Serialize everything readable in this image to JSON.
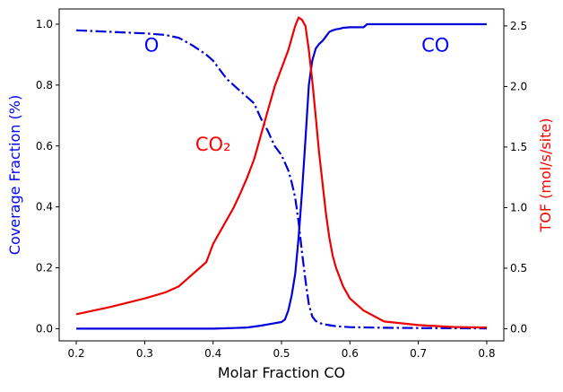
{
  "chart_data": {
    "type": "line",
    "title": "",
    "xlabel": "Molar Fraction CO",
    "ylabel_left": "Coverage Fraction (%)",
    "ylabel_right": "TOF (mol/s/site)",
    "xlim": [
      0.175,
      0.825
    ],
    "ylim_left": [
      -0.04,
      1.05
    ],
    "ylim_right": [
      -0.1,
      2.64
    ],
    "x_ticks": [
      0.2,
      0.3,
      0.4,
      0.5,
      0.6,
      0.7,
      0.8
    ],
    "x_tick_labels": [
      "0.2",
      "0.3",
      "0.4",
      "0.5",
      "0.6",
      "0.7",
      "0.8"
    ],
    "y_left_ticks": [
      0.0,
      0.2,
      0.4,
      0.6,
      0.8,
      1.0
    ],
    "y_left_tick_labels": [
      "0.0",
      "0.2",
      "0.4",
      "0.6",
      "0.8",
      "1.0"
    ],
    "y_right_ticks": [
      0.0,
      0.5,
      1.0,
      1.5,
      2.0,
      2.5
    ],
    "y_right_tick_labels": [
      "0.0",
      "0.5",
      "1.0",
      "1.5",
      "2.0",
      "2.5"
    ],
    "colors": {
      "left_axis": "#0000ff",
      "right_axis": "#ff0000",
      "co": "#0000dd",
      "o": "#0000dd",
      "co2": "#ee0000"
    },
    "annotations": [
      {
        "text": "O",
        "x": 0.31,
        "y": 0.91,
        "axis": "left",
        "color": "#0000ff"
      },
      {
        "text": "CO",
        "x": 0.725,
        "y": 0.91,
        "axis": "left",
        "color": "#0000ff"
      },
      {
        "text": "CO₂",
        "x": 0.4,
        "y": 0.585,
        "axis": "left",
        "color": "#ff0000"
      }
    ],
    "series": [
      {
        "name": "CO",
        "axis": "left",
        "style": "solid",
        "x": [
          0.2,
          0.3,
          0.4,
          0.43,
          0.45,
          0.47,
          0.49,
          0.5,
          0.505,
          0.51,
          0.515,
          0.52,
          0.525,
          0.53,
          0.535,
          0.54,
          0.545,
          0.55,
          0.555,
          0.56,
          0.565,
          0.57,
          0.575,
          0.58,
          0.585,
          0.59,
          0.6,
          0.61,
          0.62,
          0.625,
          0.65,
          0.7,
          0.75,
          0.8
        ],
        "y": [
          0.0,
          0.0,
          0.0,
          0.002,
          0.004,
          0.01,
          0.018,
          0.022,
          0.03,
          0.06,
          0.11,
          0.18,
          0.3,
          0.45,
          0.62,
          0.8,
          0.88,
          0.92,
          0.935,
          0.945,
          0.96,
          0.975,
          0.98,
          0.983,
          0.985,
          0.988,
          0.99,
          0.99,
          0.99,
          1.0,
          1.0,
          1.0,
          1.0,
          1.0
        ]
      },
      {
        "name": "O",
        "axis": "left",
        "style": "dashdot",
        "x": [
          0.2,
          0.25,
          0.3,
          0.33,
          0.35,
          0.37,
          0.39,
          0.4,
          0.42,
          0.44,
          0.46,
          0.47,
          0.48,
          0.49,
          0.5,
          0.51,
          0.515,
          0.52,
          0.525,
          0.53,
          0.535,
          0.54,
          0.545,
          0.55,
          0.56,
          0.58,
          0.6,
          0.65,
          0.7,
          0.8
        ],
        "y": [
          0.98,
          0.975,
          0.97,
          0.965,
          0.955,
          0.93,
          0.9,
          0.88,
          0.82,
          0.78,
          0.74,
          0.69,
          0.65,
          0.6,
          0.57,
          0.52,
          0.48,
          0.43,
          0.35,
          0.25,
          0.16,
          0.08,
          0.04,
          0.025,
          0.015,
          0.008,
          0.005,
          0.003,
          0.002,
          0.001
        ]
      },
      {
        "name": "CO2",
        "axis": "right",
        "style": "solid",
        "x": [
          0.2,
          0.25,
          0.3,
          0.33,
          0.35,
          0.37,
          0.38,
          0.39,
          0.4,
          0.41,
          0.42,
          0.43,
          0.44,
          0.45,
          0.46,
          0.47,
          0.48,
          0.49,
          0.5,
          0.51,
          0.515,
          0.52,
          0.525,
          0.53,
          0.535,
          0.54,
          0.545,
          0.55,
          0.555,
          0.56,
          0.565,
          0.57,
          0.575,
          0.58,
          0.59,
          0.6,
          0.62,
          0.65,
          0.7,
          0.75,
          0.8
        ],
        "y": [
          0.12,
          0.18,
          0.25,
          0.3,
          0.35,
          0.45,
          0.5,
          0.55,
          0.7,
          0.8,
          0.9,
          1.0,
          1.12,
          1.25,
          1.4,
          1.6,
          1.8,
          2.0,
          2.15,
          2.3,
          2.4,
          2.5,
          2.57,
          2.55,
          2.5,
          2.3,
          2.05,
          1.75,
          1.45,
          1.2,
          0.95,
          0.75,
          0.6,
          0.5,
          0.35,
          0.25,
          0.15,
          0.06,
          0.03,
          0.015,
          0.01
        ]
      }
    ]
  }
}
